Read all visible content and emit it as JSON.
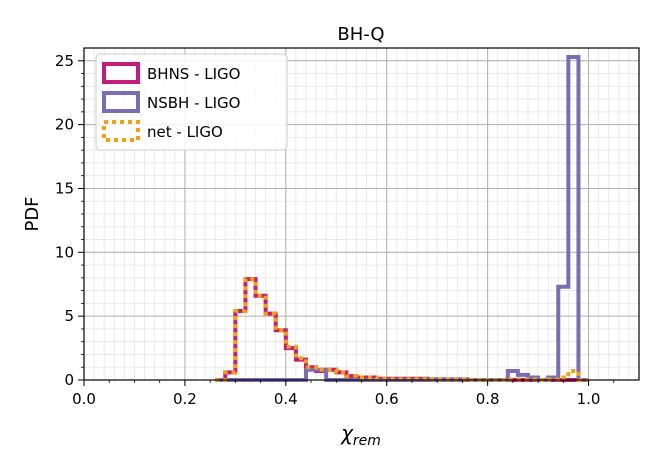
{
  "chart_data": {
    "type": "histogram-step",
    "title": "BH-Q",
    "xlabel_symbol": "χ",
    "xlabel_subscript": "rem",
    "ylabel": "PDF",
    "xlim": [
      0.0,
      1.1
    ],
    "ylim": [
      0,
      26
    ],
    "x_ticks": [
      0.0,
      0.2,
      0.4,
      0.6,
      0.8,
      1.0
    ],
    "x_tick_labels": [
      "0.0",
      "0.2",
      "0.4",
      "0.6",
      "0.8",
      "1.0"
    ],
    "y_ticks": [
      0,
      5,
      10,
      15,
      20,
      25
    ],
    "y_tick_labels": [
      "0",
      "5",
      "10",
      "15",
      "20",
      "25"
    ],
    "grid": "major and minor",
    "legend_position": "top-left",
    "bin_edges": [
      0.26,
      0.28,
      0.3,
      0.32,
      0.34,
      0.36,
      0.38,
      0.4,
      0.42,
      0.44,
      0.46,
      0.48,
      0.5,
      0.52,
      0.54,
      0.56,
      0.58,
      0.6,
      0.62,
      0.64,
      0.66,
      0.68,
      0.7,
      0.72,
      0.74,
      0.76,
      0.78,
      0.8,
      0.82,
      0.84,
      0.86,
      0.88,
      0.9,
      0.92,
      0.94,
      0.96,
      0.98,
      1.0
    ],
    "series": [
      {
        "name": "BHNS - LIGO",
        "color": "#c51b7d",
        "style": "solid",
        "values": [
          0,
          0.6,
          5.4,
          7.9,
          6.6,
          5.2,
          3.9,
          2.5,
          1.6,
          1.0,
          0.7,
          0.8,
          0.6,
          0.3,
          0.2,
          0.2,
          0.1,
          0.1,
          0.1,
          0.1,
          0.1,
          0.05,
          0.05,
          0.05,
          0.05,
          0.0,
          0.0,
          0.0,
          0.0,
          0.0,
          0.0,
          0.0,
          0.0,
          0.0,
          0.0,
          0.0,
          0.0
        ]
      },
      {
        "name": "NSBH - LIGO",
        "color": "#7b6db5",
        "style": "solid",
        "values": [
          0,
          0,
          0,
          0,
          0,
          0,
          0,
          0,
          0,
          0.8,
          0.8,
          0,
          0,
          0,
          0,
          0,
          0,
          0,
          0,
          0,
          0,
          0,
          0,
          0,
          0,
          0,
          0,
          0,
          0,
          0.7,
          0.4,
          0.2,
          0,
          0.2,
          7.3,
          25.3,
          0
        ]
      },
      {
        "name": "net - LIGO",
        "color": "#f5a00f",
        "style": "dotted",
        "values": [
          0,
          0.6,
          5.4,
          7.9,
          6.6,
          5.2,
          3.9,
          2.6,
          1.7,
          1.0,
          0.8,
          0.8,
          0.6,
          0.3,
          0.2,
          0.2,
          0.1,
          0.1,
          0.1,
          0.1,
          0.1,
          0.05,
          0.05,
          0.05,
          0.05,
          0.0,
          0.0,
          0.0,
          0.0,
          0.05,
          0.05,
          0.05,
          0.0,
          0.05,
          0.2,
          0.7,
          0
        ]
      }
    ]
  }
}
